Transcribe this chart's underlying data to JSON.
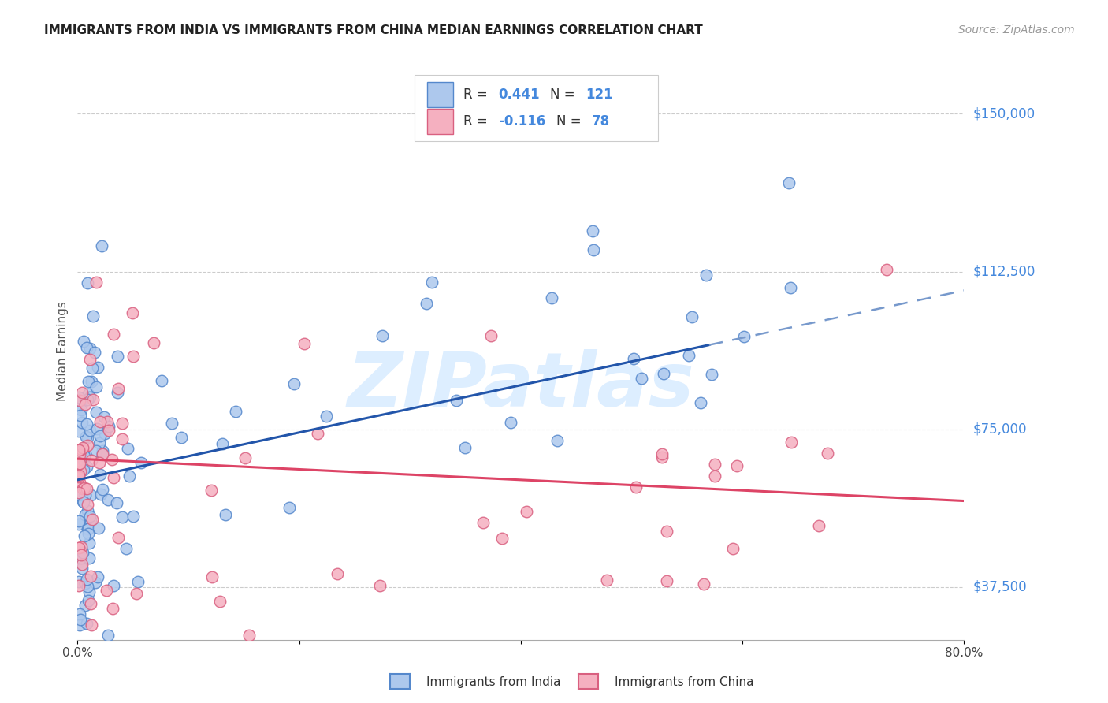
{
  "title": "IMMIGRANTS FROM INDIA VS IMMIGRANTS FROM CHINA MEDIAN EARNINGS CORRELATION CHART",
  "source": "Source: ZipAtlas.com",
  "ylabel": "Median Earnings",
  "yticks": [
    37500,
    75000,
    112500,
    150000
  ],
  "ytick_labels": [
    "$37,500",
    "$75,000",
    "$112,500",
    "$150,000"
  ],
  "xmin": 0.0,
  "xmax": 80.0,
  "ymin": 25000,
  "ymax": 162000,
  "india_color": "#adc8ed",
  "india_edge_color": "#5588cc",
  "china_color": "#f5b0c0",
  "china_edge_color": "#d96080",
  "india_R": 0.441,
  "india_N": 121,
  "china_R": -0.116,
  "china_N": 78,
  "trend_india_color": "#2255aa",
  "trend_india_dash_color": "#7799cc",
  "trend_china_color": "#dd4466",
  "watermark": "ZIPatlas",
  "watermark_color": "#ddeeff",
  "india_trend_x0": 0.0,
  "india_trend_y0": 63000,
  "india_trend_x1": 80.0,
  "india_trend_y1": 108000,
  "india_solid_xmax": 57.0,
  "china_trend_x0": 0.0,
  "china_trend_y0": 68000,
  "china_trend_x1": 80.0,
  "china_trend_y1": 58000,
  "grid_color": "#cccccc",
  "bottom_border_color": "#aaaaaa",
  "title_fontsize": 11,
  "source_fontsize": 10,
  "ytick_fontsize": 12,
  "xtick_fontsize": 11,
  "ylabel_fontsize": 11,
  "legend_fontsize": 12,
  "watermark_fontsize": 70
}
